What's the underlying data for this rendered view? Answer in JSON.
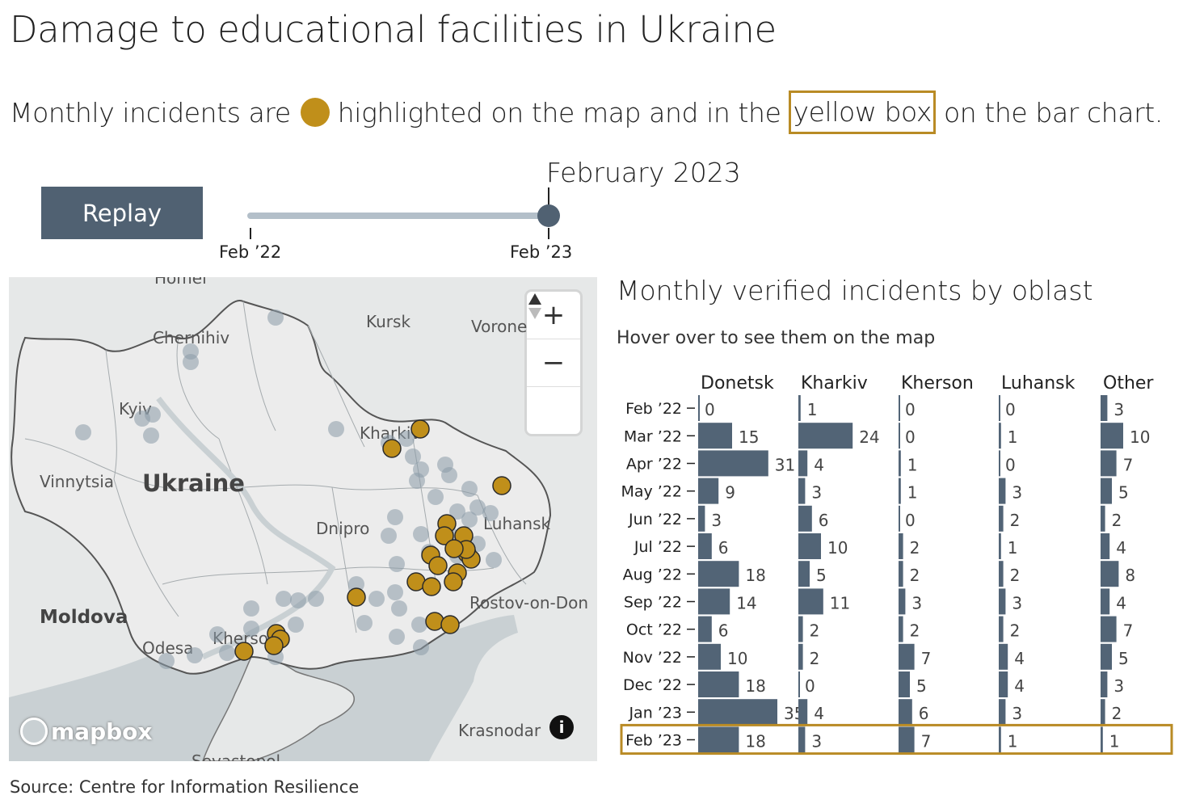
{
  "title": "Damage to educational facilities in Ukraine",
  "subtitle": {
    "before": "Monthly incidents are",
    "middle": "highlighted on the map and in the",
    "box_text": "yellow box",
    "after": "on the bar chart."
  },
  "colors": {
    "highlight": "#c08f1a",
    "bar": "#526476",
    "highlight_box": "#b98b25",
    "slider_track": "#b3bfc9"
  },
  "controls": {
    "replay_label": "Replay",
    "slider": {
      "current_label": "February 2023",
      "start_label": "Feb ’22",
      "end_label": "Feb ’23",
      "value_fraction": 1.0
    }
  },
  "map": {
    "place_labels": [
      "Homel",
      "Kursk",
      "Chernihiv",
      "Voronezh",
      "Kyiv",
      "Kharkiv",
      "Ukraine",
      "Vinnytsia",
      "Luhansk",
      "Dnipro",
      "Moldova",
      "Rostov-on-Don",
      "Odesa",
      "Kherson",
      "Krasnodar",
      "Sevastopol"
    ],
    "zoom_in_icon": "plus-icon",
    "zoom_out_icon": "minus-icon",
    "compass_icon": "compass-icon",
    "logo_text": "mapbox",
    "info_icon": "info-icon"
  },
  "chart_data": {
    "type": "bar",
    "title": "Monthly verified incidents by oblast",
    "subtitle": "Hover over to see them on the map",
    "categories": [
      "Feb ’22",
      "Mar ’22",
      "Apr ’22",
      "May ’22",
      "Jun ’22",
      "Jul ’22",
      "Aug ’22",
      "Sep ’22",
      "Oct ’22",
      "Nov ’22",
      "Dec ’22",
      "Jan ’23",
      "Feb ’23"
    ],
    "series": [
      {
        "name": "Donetsk",
        "values": [
          0,
          15,
          31,
          9,
          3,
          6,
          18,
          14,
          6,
          10,
          18,
          35,
          18
        ]
      },
      {
        "name": "Kharkiv",
        "values": [
          1,
          24,
          4,
          3,
          6,
          10,
          5,
          11,
          2,
          2,
          0,
          4,
          3
        ]
      },
      {
        "name": "Kherson",
        "values": [
          0,
          0,
          1,
          1,
          0,
          2,
          2,
          3,
          2,
          7,
          5,
          6,
          7
        ]
      },
      {
        "name": "Luhansk",
        "values": [
          0,
          1,
          0,
          3,
          2,
          1,
          2,
          3,
          2,
          4,
          4,
          3,
          1
        ]
      },
      {
        "name": "Other",
        "values": [
          3,
          10,
          7,
          5,
          2,
          4,
          8,
          4,
          7,
          5,
          3,
          2,
          1
        ]
      }
    ],
    "highlighted_category": "Feb ’23"
  },
  "source": "Source: Centre for Information Resilience"
}
